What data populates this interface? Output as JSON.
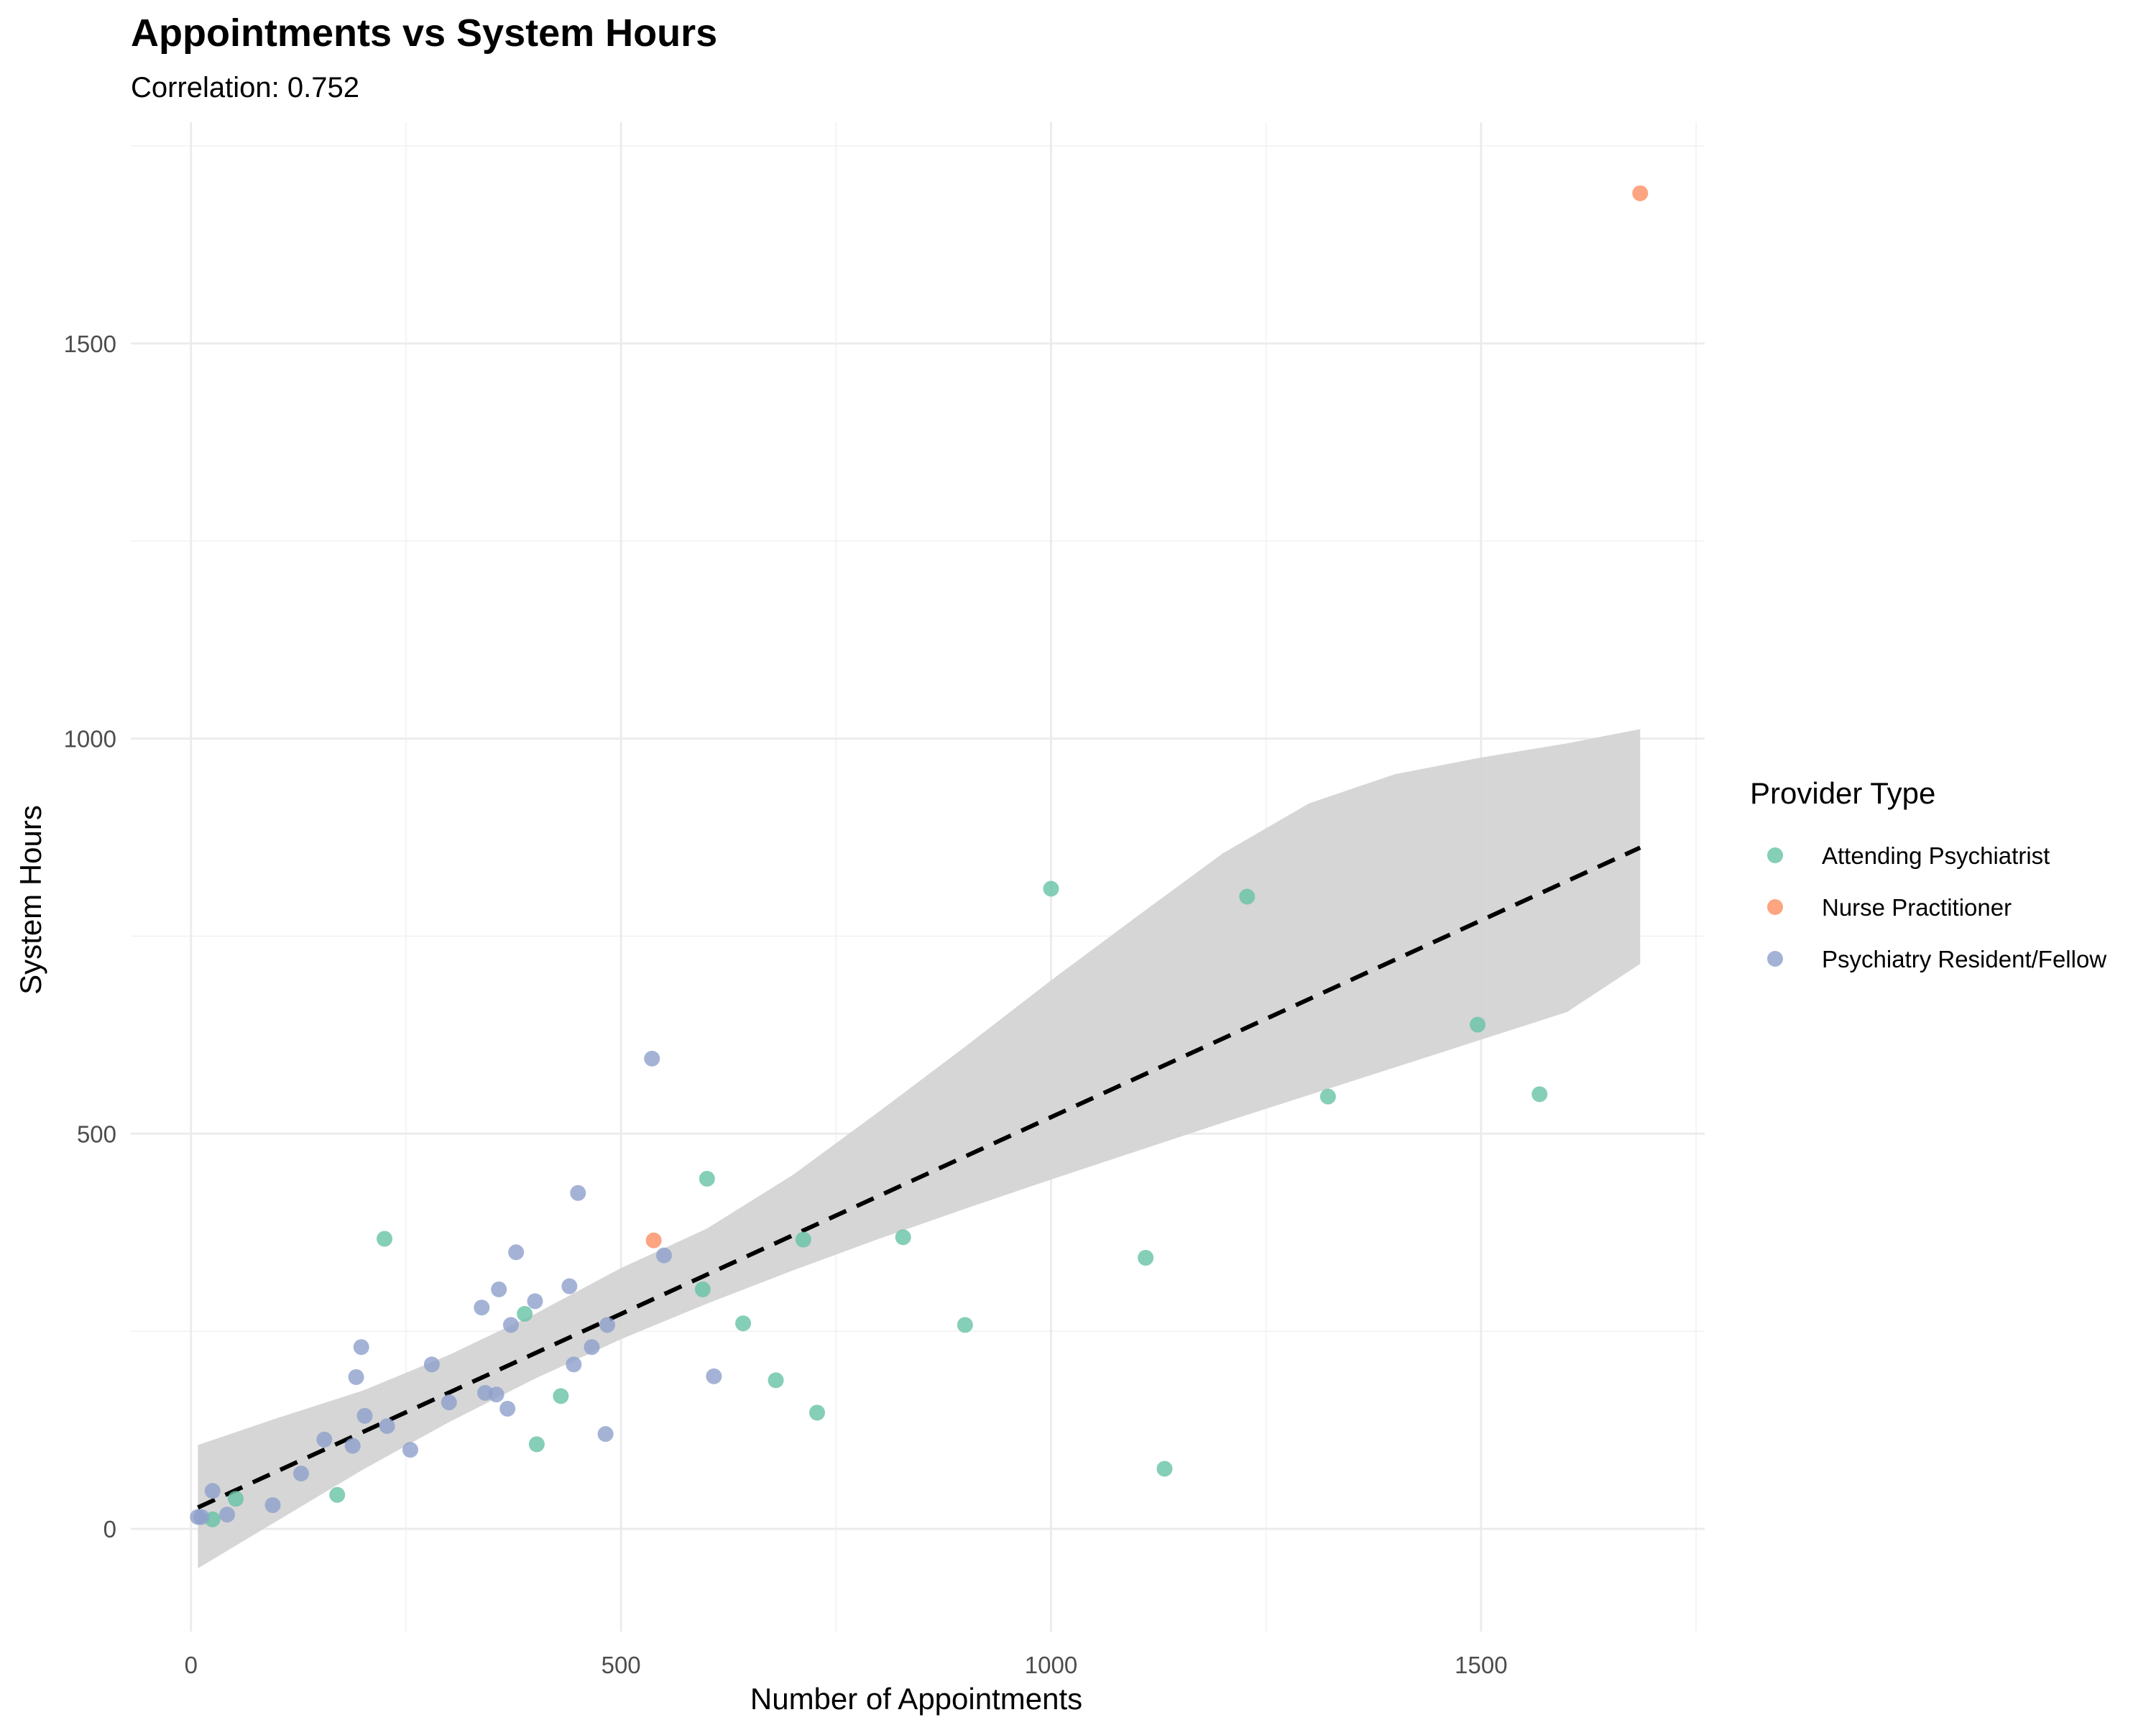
{
  "chart_data": {
    "type": "scatter",
    "title": "Appointments vs System Hours",
    "subtitle": "Correlation: 0.752",
    "xlabel": "Number of Appointments",
    "ylabel": "System Hours",
    "xlim": [
      -70,
      1760
    ],
    "ylim": [
      -130,
      1780
    ],
    "x_ticks": [
      0,
      500,
      1000,
      1500
    ],
    "y_ticks": [
      0,
      500,
      1000,
      1500
    ],
    "x_tick_labels": [
      "0",
      "500",
      "1000",
      "1500"
    ],
    "y_tick_labels": [
      "0",
      "500",
      "1000",
      "1500"
    ],
    "grid": true,
    "legend": {
      "title": "Provider Type",
      "position": "right"
    },
    "series": [
      {
        "name": "Attending Psychiatrist",
        "color": "#66c2a5",
        "points": [
          [
            25,
            12
          ],
          [
            52,
            38
          ],
          [
            170,
            43
          ],
          [
            225,
            367
          ],
          [
            388,
            272
          ],
          [
            402,
            107
          ],
          [
            430,
            168
          ],
          [
            595,
            303
          ],
          [
            600,
            443
          ],
          [
            642,
            260
          ],
          [
            680,
            188
          ],
          [
            712,
            366
          ],
          [
            728,
            147
          ],
          [
            828,
            369
          ],
          [
            900,
            258
          ],
          [
            1000,
            810
          ],
          [
            1110,
            343
          ],
          [
            1132,
            76
          ],
          [
            1228,
            800
          ],
          [
            1322,
            547
          ],
          [
            1496,
            638
          ],
          [
            1568,
            550
          ]
        ]
      },
      {
        "name": "Nurse Practitioner",
        "color": "#fc8d62",
        "points": [
          [
            538,
            365
          ],
          [
            1685,
            1690
          ]
        ]
      },
      {
        "name": "Psychiatry Resident/Fellow",
        "color": "#8da0cb",
        "points": [
          [
            8,
            15
          ],
          [
            12,
            15
          ],
          [
            25,
            48
          ],
          [
            42,
            18
          ],
          [
            95,
            30
          ],
          [
            128,
            70
          ],
          [
            155,
            113
          ],
          [
            188,
            105
          ],
          [
            192,
            192
          ],
          [
            198,
            230
          ],
          [
            202,
            143
          ],
          [
            228,
            130
          ],
          [
            255,
            100
          ],
          [
            280,
            208
          ],
          [
            300,
            160
          ],
          [
            338,
            280
          ],
          [
            342,
            172
          ],
          [
            355,
            170
          ],
          [
            358,
            303
          ],
          [
            368,
            152
          ],
          [
            372,
            258
          ],
          [
            378,
            350
          ],
          [
            400,
            288
          ],
          [
            440,
            307
          ],
          [
            445,
            208
          ],
          [
            450,
            425
          ],
          [
            466,
            230
          ],
          [
            482,
            120
          ],
          [
            484,
            258
          ],
          [
            536,
            595
          ],
          [
            550,
            346
          ],
          [
            608,
            193
          ]
        ]
      }
    ],
    "trend": {
      "style": "dashed",
      "color": "#000000",
      "x": [
        8,
        1685
      ],
      "y": [
        27,
        862
      ],
      "band": {
        "color": "#d4d4d4",
        "x": [
          8,
          100,
          200,
          300,
          400,
          500,
          600,
          700,
          800,
          900,
          1000,
          1100,
          1200,
          1300,
          1400,
          1500,
          1600,
          1685
        ],
        "lower": [
          -50,
          10,
          75,
          135,
          190,
          240,
          285,
          327,
          367,
          405,
          442,
          478,
          514,
          549,
          584,
          619,
          654,
          715
        ],
        "upper": [
          106,
          140,
          175,
          220,
          272,
          330,
          380,
          448,
          528,
          610,
          694,
          775,
          855,
          918,
          955,
          976,
          994,
          1012
        ]
      }
    }
  }
}
